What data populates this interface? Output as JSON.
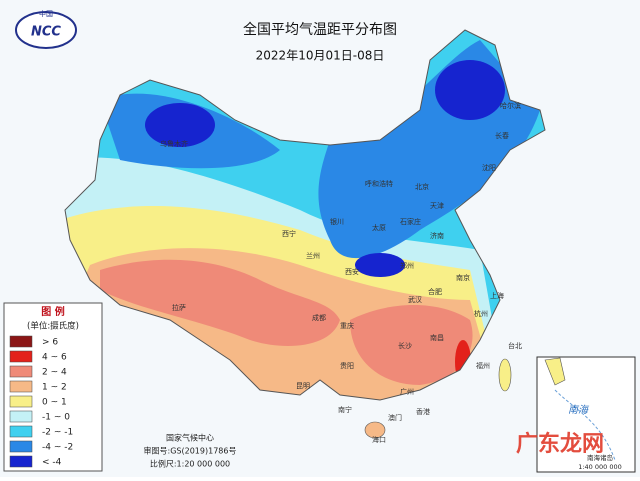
{
  "header": {
    "logo_top": "中国",
    "logo": "NCC",
    "title": "全国平均气温距平分布图",
    "subtitle": "2022年10月01日-08日"
  },
  "legend": {
    "title": "图 例",
    "unit": "(单位:摄氏度)",
    "items": [
      {
        "label": "> 6",
        "color": "#8b1616"
      },
      {
        "label": "4 ~ 6",
        "color": "#e3211b"
      },
      {
        "label": "2 ~ 4",
        "color": "#ef8a78"
      },
      {
        "label": "1 ~ 2",
        "color": "#f6b987"
      },
      {
        "label": "0 ~ 1",
        "color": "#f8ef88"
      },
      {
        "label": "-1 ~ 0",
        "color": "#c4f1f6"
      },
      {
        "label": "-2 ~ -1",
        "color": "#3fd0ef"
      },
      {
        "label": "-4 ~ -2",
        "color": "#2a88e6"
      },
      {
        "label": "< -4",
        "color": "#1624cf"
      }
    ]
  },
  "cities": [
    "乌鲁木齐",
    "哈尔滨",
    "长春",
    "沈阳",
    "呼和浩特",
    "北京",
    "天津",
    "石家庄",
    "太原",
    "济南",
    "银川",
    "西宁",
    "兰州",
    "郑州",
    "西安",
    "南京",
    "合肥",
    "上海",
    "武汉",
    "杭州",
    "拉萨",
    "成都",
    "重庆",
    "长沙",
    "南昌",
    "福州",
    "贵阳",
    "昆明",
    "南宁",
    "广州",
    "台北",
    "香港",
    "澳门",
    "海口"
  ],
  "footer": {
    "org": "国家气候中心",
    "approval": "审图号:GS(2019)1786号",
    "scale": "比例尺:1:20 000 000"
  },
  "inset": {
    "sea": "南海",
    "label": "南海诸岛",
    "scale": "1:40 000 000"
  },
  "watermark": "广东龙网"
}
